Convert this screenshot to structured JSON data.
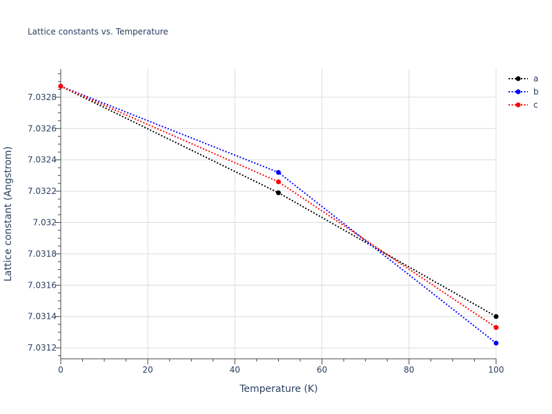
{
  "chart_data": {
    "type": "line",
    "title": "Lattice constants vs. Temperature",
    "xlabel": "Temperature (K)",
    "ylabel": "Lattice constant (Angstrom)",
    "xlim": [
      0,
      100
    ],
    "ylim": [
      7.03113,
      7.03298
    ],
    "x_ticks": [
      0,
      20,
      40,
      60,
      80,
      100
    ],
    "x_tick_labels": [
      "0",
      "20",
      "40",
      "60",
      "80",
      "100"
    ],
    "y_ticks": [
      7.0312,
      7.0314,
      7.0316,
      7.0318,
      7.032,
      7.0322,
      7.0324,
      7.0326,
      7.0328
    ],
    "y_tick_labels": [
      "7.0312",
      "7.0314",
      "7.0316",
      "7.0318",
      "7.032",
      "7.0322",
      "7.0324",
      "7.0326",
      "7.0328"
    ],
    "grid": true,
    "legend_position": "top-right",
    "x": [
      0,
      50,
      100
    ],
    "series": [
      {
        "name": "a",
        "color": "#000000",
        "values": [
          7.03287,
          7.03219,
          7.0314
        ]
      },
      {
        "name": "b",
        "color": "#0000ff",
        "values": [
          7.03287,
          7.03232,
          7.03123
        ]
      },
      {
        "name": "c",
        "color": "#ff0000",
        "values": [
          7.03287,
          7.03226,
          7.03133
        ]
      }
    ]
  }
}
